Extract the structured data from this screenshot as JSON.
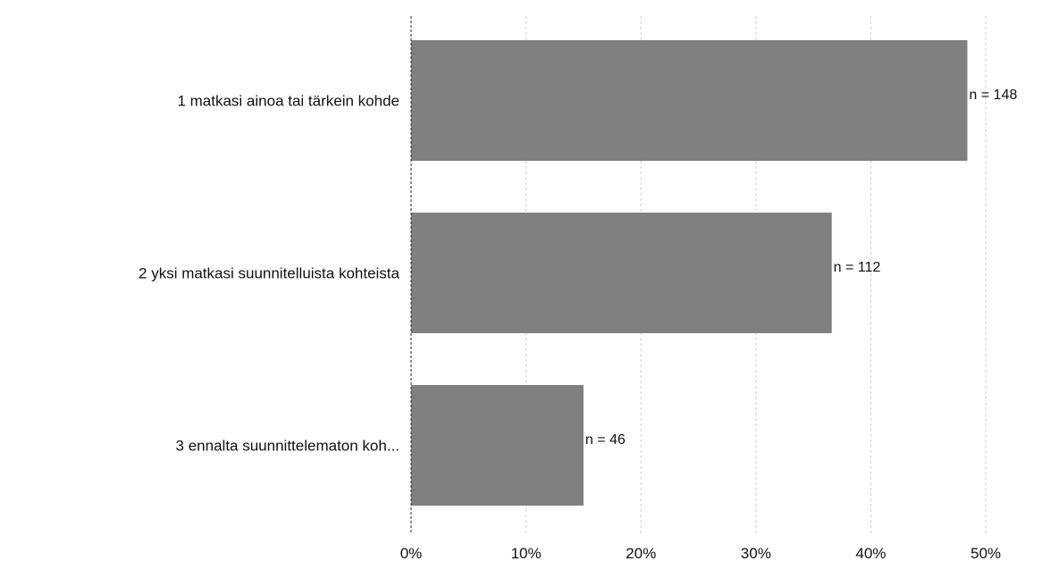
{
  "chart_data": {
    "type": "bar",
    "orientation": "horizontal",
    "categories": [
      "1 matkasi ainoa tai tärkein kohde",
      "2 yksi matkasi suunnitelluista kohteista",
      "3 ennalta suunnittelematon koh..."
    ],
    "values": [
      48.4,
      36.6,
      15.0
    ],
    "data_labels": [
      "n = 148",
      "n = 112",
      "n = 46"
    ],
    "x_ticks": [
      "0%",
      "10%",
      "20%",
      "30%",
      "40%",
      "50%"
    ],
    "xlim": [
      0,
      50
    ],
    "unit": "%",
    "grid": "vertical dashed",
    "bar_color": "#808080",
    "title": "",
    "xlabel": "",
    "ylabel": ""
  }
}
